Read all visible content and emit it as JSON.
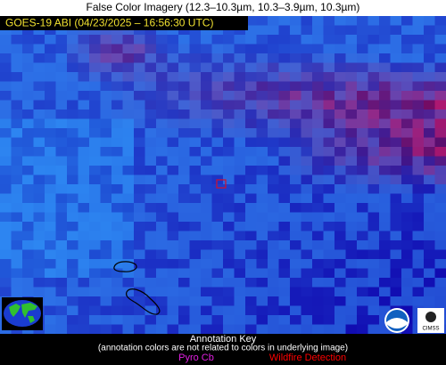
{
  "header": {
    "title": "False Color Imagery (12.3–10.3µm, 10.3–3.9µm, 10.3µm)"
  },
  "image": {
    "label": "GOES-19 ABI (04/23/2025 – 16:56:30 UTC)"
  },
  "annotation_key": {
    "title": "Annotation Key",
    "note": "(annotation colors are not related to colors in underlying image)",
    "items": [
      {
        "label": "Pyro Cb",
        "color": "#e020e0"
      },
      {
        "label": "Wildfire Detection",
        "color": "#ff0000"
      }
    ]
  },
  "logos": {
    "right": "CIMSS"
  }
}
